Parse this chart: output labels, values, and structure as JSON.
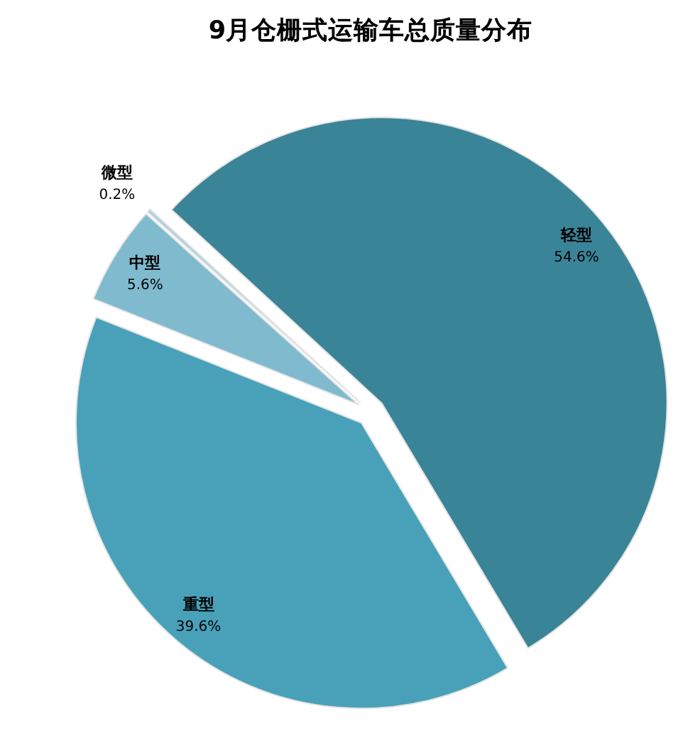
{
  "chart_data": {
    "type": "pie",
    "title": "9月仓栅式运输车总质量分布",
    "categories": [
      "轻型",
      "重型",
      "中型",
      "微型"
    ],
    "values": [
      54.6,
      39.6,
      5.6,
      0.2
    ],
    "colors": [
      "#3a8498",
      "#48a1b8",
      "#7fbacf",
      "#a9d0df"
    ],
    "value_labels": [
      "54.6%",
      "39.6%",
      "5.6%",
      "0.2%"
    ]
  }
}
